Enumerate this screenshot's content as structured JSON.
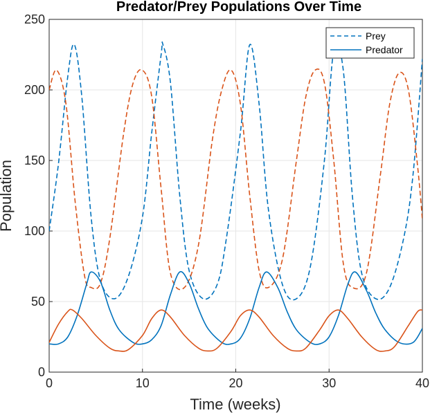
{
  "chart_data": {
    "type": "line",
    "title": "Predator/Prey Populations Over Time",
    "xlabel": "Time (weeks)",
    "ylabel": "Population",
    "xlim": [
      0,
      40
    ],
    "ylim": [
      0,
      250
    ],
    "xticks": [
      0,
      10,
      20,
      30,
      40
    ],
    "yticks": [
      0,
      50,
      100,
      150,
      200,
      250
    ],
    "grid": true,
    "legend": {
      "placement": "top-right",
      "entries": [
        {
          "label": "Prey",
          "style": "dashed",
          "color": "#0072BD"
        },
        {
          "label": "Predator",
          "style": "solid",
          "color": "#0072BD"
        }
      ]
    },
    "series": [
      {
        "role": "prey-dashed-blue",
        "color": "#0072BD",
        "style": "dashed",
        "x": [
          0,
          1,
          2,
          2.7,
          3.5,
          4.5,
          5.5,
          7.0,
          8.5,
          10,
          11,
          12,
          12.2,
          13,
          14,
          15,
          16.5,
          18,
          19,
          20.5,
          21.5,
          22.5,
          23.5,
          25,
          26.5,
          28,
          29.5,
          30.5,
          31.5,
          32.5,
          33.5,
          35,
          36.5,
          38,
          39,
          40
        ],
        "y": [
          100,
          148,
          210,
          232,
          195,
          110,
          65,
          52,
          68,
          110,
          170,
          225,
          232,
          205,
          125,
          72,
          52,
          62,
          95,
          170,
          232,
          190,
          115,
          62,
          52,
          75,
          150,
          228,
          215,
          125,
          70,
          52,
          60,
          95,
          140,
          222
        ]
      },
      {
        "role": "prey-dashed-orange",
        "color": "#D95319",
        "style": "dashed",
        "x": [
          0,
          0.8,
          1.8,
          2.8,
          3.8,
          4.5,
          5.5,
          6.5,
          8,
          9,
          10,
          11,
          12,
          13,
          14.5,
          16,
          17.5,
          18.5,
          19.5,
          20.5,
          21.5,
          22.5,
          23.5,
          25,
          26.5,
          27.5,
          28.5,
          29.5,
          30.5,
          31.5,
          32.5,
          34,
          35.5,
          36.5,
          37.5,
          38.5,
          39.5,
          40
        ],
        "y": [
          200,
          214,
          190,
          120,
          68,
          60,
          63,
          95,
          170,
          205,
          214,
          195,
          130,
          70,
          60,
          90,
          165,
          200,
          214,
          190,
          125,
          72,
          60,
          80,
          150,
          195,
          214,
          205,
          150,
          78,
          60,
          70,
          140,
          190,
          212,
          200,
          145,
          108
        ]
      },
      {
        "role": "predator-solid-blue",
        "color": "#0072BD",
        "style": "solid",
        "x": [
          0,
          1,
          2,
          3,
          4,
          4.5,
          5.5,
          6.5,
          7.5,
          9,
          10,
          11,
          12,
          13,
          14,
          15,
          16,
          17,
          18.5,
          19.5,
          20.5,
          21.5,
          22.5,
          23.3,
          24.5,
          25.5,
          26.5,
          28,
          29,
          30,
          31,
          32,
          32.8,
          34,
          35,
          36,
          37.5,
          39,
          40
        ],
        "y": [
          20,
          20,
          25,
          40,
          62,
          71,
          64,
          44,
          30,
          21,
          20,
          23,
          33,
          55,
          71,
          63,
          45,
          31,
          21,
          20,
          24,
          38,
          60,
          71,
          60,
          43,
          30,
          21,
          20,
          25,
          40,
          62,
          71,
          58,
          42,
          30,
          21,
          21,
          31
        ]
      },
      {
        "role": "predator-solid-orange",
        "color": "#D95319",
        "style": "solid",
        "x": [
          0,
          1,
          2,
          2.5,
          3.5,
          5,
          6.5,
          7.5,
          8.5,
          10,
          11,
          12,
          13,
          14.5,
          16,
          17,
          18,
          19.5,
          20.5,
          21.5,
          22.5,
          24,
          25.5,
          26.5,
          27.5,
          29,
          30,
          31,
          32,
          33.5,
          35,
          36,
          37,
          38.5,
          39.5,
          40
        ],
        "y": [
          21,
          34,
          43,
          44,
          38,
          26,
          17,
          15,
          16,
          26,
          38,
          44,
          39,
          26,
          17,
          15,
          17,
          29,
          40,
          44,
          39,
          26,
          17,
          15,
          17,
          30,
          40,
          44,
          38,
          25,
          16,
          15,
          18,
          33,
          43,
          44
        ]
      }
    ]
  }
}
